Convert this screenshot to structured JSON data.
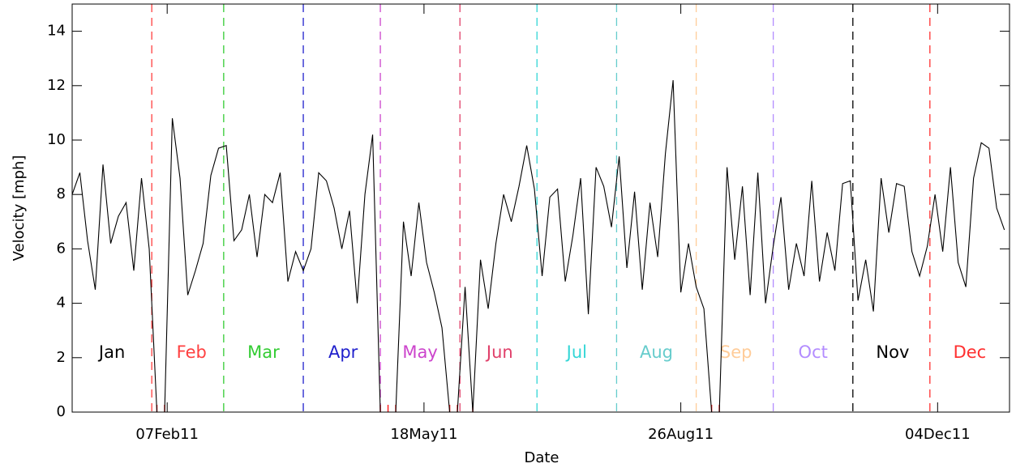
{
  "chart_data": {
    "type": "line",
    "xlabel": "Date",
    "ylabel": "Velocity [mph]",
    "xlim": [
      "2011-01-01",
      "2012-01-01"
    ],
    "xticks": [
      {
        "value": "2011-02-07",
        "label": "07Feb11"
      },
      {
        "value": "2011-05-18",
        "label": "18May11"
      },
      {
        "value": "2011-08-26",
        "label": "26Aug11"
      },
      {
        "value": "2011-12-04",
        "label": "04Dec11"
      }
    ],
    "ylim": [
      0,
      15
    ],
    "yticks": [
      0,
      2,
      4,
      6,
      8,
      10,
      12,
      14
    ],
    "zero_marker_color": "#ff2020",
    "months": [
      {
        "name": "Jan",
        "color": "#000000",
        "start": "2011-01-01"
      },
      {
        "name": "Feb",
        "color": "#ff4040",
        "start": "2011-02-01"
      },
      {
        "name": "Mar",
        "color": "#33cc33",
        "start": "2011-03-01"
      },
      {
        "name": "Apr",
        "color": "#2020cc",
        "start": "2011-04-01"
      },
      {
        "name": "May",
        "color": "#cc44cc",
        "start": "2011-05-01"
      },
      {
        "name": "Jun",
        "color": "#e0406a",
        "start": "2011-06-01"
      },
      {
        "name": "Jul",
        "color": "#33d6d6",
        "start": "2011-07-01"
      },
      {
        "name": "Aug",
        "color": "#66cccc",
        "start": "2011-08-01"
      },
      {
        "name": "Sep",
        "color": "#ffcc99",
        "start": "2011-09-01"
      },
      {
        "name": "Oct",
        "color": "#b38cff",
        "start": "2011-10-01"
      },
      {
        "name": "Nov",
        "color": "#000000",
        "start": "2011-11-01"
      },
      {
        "name": "Dec",
        "color": "#ff3030",
        "start": "2011-12-01"
      }
    ],
    "x": [
      "2011-01-01",
      "2011-01-04",
      "2011-01-07",
      "2011-01-10",
      "2011-01-13",
      "2011-01-16",
      "2011-01-19",
      "2011-01-22",
      "2011-01-25",
      "2011-01-28",
      "2011-01-31",
      "2011-02-03",
      "2011-02-06",
      "2011-02-09",
      "2011-02-12",
      "2011-02-15",
      "2011-02-18",
      "2011-02-21",
      "2011-02-24",
      "2011-02-27",
      "2011-03-02",
      "2011-03-05",
      "2011-03-08",
      "2011-03-11",
      "2011-03-14",
      "2011-03-17",
      "2011-03-20",
      "2011-03-23",
      "2011-03-26",
      "2011-03-29",
      "2011-04-01",
      "2011-04-04",
      "2011-04-07",
      "2011-04-10",
      "2011-04-13",
      "2011-04-16",
      "2011-04-19",
      "2011-04-22",
      "2011-04-25",
      "2011-04-28",
      "2011-05-01",
      "2011-05-04",
      "2011-05-07",
      "2011-05-10",
      "2011-05-13",
      "2011-05-16",
      "2011-05-19",
      "2011-05-22",
      "2011-05-25",
      "2011-05-28",
      "2011-05-31",
      "2011-06-03",
      "2011-06-06",
      "2011-06-09",
      "2011-06-12",
      "2011-06-15",
      "2011-06-18",
      "2011-06-21",
      "2011-06-24",
      "2011-06-27",
      "2011-06-30",
      "2011-07-03",
      "2011-07-06",
      "2011-07-09",
      "2011-07-12",
      "2011-07-15",
      "2011-07-18",
      "2011-07-21",
      "2011-07-24",
      "2011-07-27",
      "2011-07-30",
      "2011-08-02",
      "2011-08-05",
      "2011-08-08",
      "2011-08-11",
      "2011-08-14",
      "2011-08-17",
      "2011-08-20",
      "2011-08-23",
      "2011-08-26",
      "2011-08-29",
      "2011-09-01",
      "2011-09-04",
      "2011-09-07",
      "2011-09-10",
      "2011-09-13",
      "2011-09-16",
      "2011-09-19",
      "2011-09-22",
      "2011-09-25",
      "2011-09-28",
      "2011-10-01",
      "2011-10-04",
      "2011-10-07",
      "2011-10-10",
      "2011-10-13",
      "2011-10-16",
      "2011-10-19",
      "2011-10-22",
      "2011-10-25",
      "2011-10-28",
      "2011-10-31",
      "2011-11-03",
      "2011-11-06",
      "2011-11-09",
      "2011-11-12",
      "2011-11-15",
      "2011-11-18",
      "2011-11-21",
      "2011-11-24",
      "2011-11-27",
      "2011-11-30",
      "2011-12-03",
      "2011-12-06",
      "2011-12-09",
      "2011-12-12",
      "2011-12-15",
      "2011-12-18",
      "2011-12-21",
      "2011-12-24",
      "2011-12-27",
      "2011-12-30"
    ],
    "series": [
      {
        "name": "Velocity",
        "color": "#000000",
        "values": [
          8.0,
          8.8,
          6.3,
          4.5,
          9.1,
          6.2,
          7.2,
          7.7,
          5.2,
          8.6,
          6.0,
          0,
          0,
          10.8,
          8.6,
          4.3,
          5.2,
          6.2,
          8.7,
          9.7,
          9.8,
          6.3,
          6.7,
          8.0,
          5.7,
          8.0,
          7.7,
          8.8,
          4.8,
          5.9,
          5.2,
          6.0,
          8.8,
          8.5,
          7.5,
          6.0,
          7.4,
          4.0,
          8.0,
          10.2,
          0,
          0,
          0,
          7.0,
          5.0,
          7.7,
          5.5,
          4.4,
          3.1,
          0,
          0,
          4.6,
          0,
          5.6,
          3.8,
          6.2,
          8.0,
          7.0,
          8.3,
          9.8,
          8.2,
          5.0,
          7.9,
          8.2,
          4.8,
          6.5,
          8.6,
          3.6,
          9.0,
          8.3,
          6.8,
          9.4,
          5.3,
          8.1,
          4.5,
          7.7,
          5.7,
          9.5,
          12.2,
          4.4,
          6.2,
          4.6,
          3.8,
          0,
          0,
          9.0,
          5.6,
          8.3,
          4.3,
          8.8,
          4.0,
          6.1,
          7.9,
          4.5,
          6.2,
          5.0,
          8.5,
          4.8,
          6.6,
          5.2,
          8.4,
          8.5,
          4.1,
          5.6,
          3.7,
          8.6,
          6.6,
          8.4,
          8.3,
          5.9,
          5.0,
          6.1,
          8.0,
          5.9,
          9.0,
          5.5,
          4.6,
          8.6,
          9.9,
          9.7,
          7.5,
          6.7
        ]
      }
    ]
  }
}
